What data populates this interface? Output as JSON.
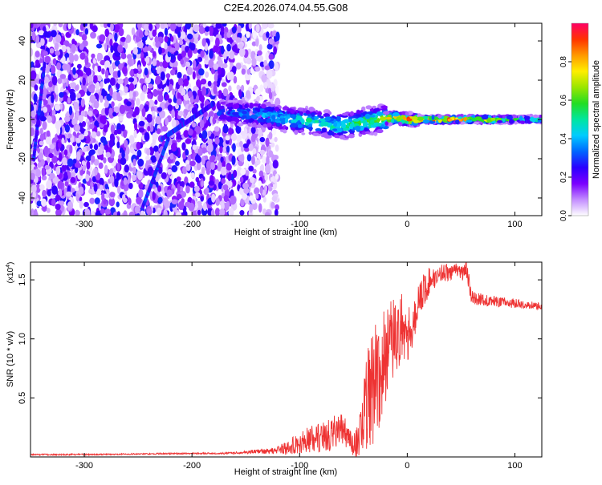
{
  "chart_data": [
    {
      "type": "heatmap",
      "title": "C2E4.2026.074.04.55.G08",
      "xlabel": "Height of straight line (km)",
      "ylabel": "Frequency (Hz)",
      "xlim": [
        -350,
        125
      ],
      "ylim": [
        -49,
        49
      ],
      "xticks": [
        -300,
        -200,
        -100,
        0,
        100
      ],
      "yticks": [
        40,
        20,
        0,
        -20,
        -40
      ],
      "colorbar": {
        "label": "Normalized spectral amplitude",
        "range": [
          0,
          1
        ],
        "ticks": [
          "0.0",
          "0.2",
          "0.4",
          "0.6",
          "0.8"
        ],
        "colors": [
          "#ffffff",
          "#c38cff",
          "#7a00ff",
          "#2a00ff",
          "#0066ff",
          "#00ccff",
          "#00e6a0",
          "#22dd22",
          "#99e600",
          "#ffee00",
          "#ff9900",
          "#ff3300",
          "#ff0066"
        ]
      },
      "signal_track": {
        "description_free": true,
        "centre_frequency": [
          [
            -170,
            4
          ],
          [
            -150,
            3
          ],
          [
            -130,
            2
          ],
          [
            -110,
            0
          ],
          [
            -90,
            -1
          ],
          [
            -70,
            -3
          ],
          [
            -55,
            -3
          ],
          [
            -40,
            -1
          ],
          [
            -25,
            0
          ],
          [
            -10,
            1
          ],
          [
            0,
            0
          ],
          [
            20,
            0
          ],
          [
            40,
            0
          ],
          [
            60,
            0
          ],
          [
            80,
            0
          ],
          [
            100,
            0
          ],
          [
            125,
            0
          ]
        ],
        "peak_amplitude": [
          [
            -170,
            0.3
          ],
          [
            -140,
            0.4
          ],
          [
            -110,
            0.45
          ],
          [
            -90,
            0.5
          ],
          [
            -70,
            0.5
          ],
          [
            -50,
            0.55
          ],
          [
            -30,
            0.6
          ],
          [
            -15,
            0.75
          ],
          [
            0,
            0.85
          ],
          [
            20,
            0.9
          ],
          [
            40,
            0.9
          ],
          [
            60,
            0.75
          ],
          [
            80,
            0.7
          ],
          [
            100,
            0.55
          ],
          [
            125,
            0.5
          ]
        ]
      }
    },
    {
      "type": "line",
      "xlabel": "Height of straight line (km)",
      "ylabel": "SNR (10 * v/v)",
      "y_multiplier": "(x10",
      "y_multiplier_exp": "4",
      "y_multiplier_close": ")",
      "xlim": [
        -350,
        125
      ],
      "ylim": [
        0,
        1.65
      ],
      "xticks": [
        -300,
        -200,
        -100,
        0,
        100
      ],
      "yticks": [
        "0.5",
        "1.0",
        "1.5"
      ],
      "color": "#ee3333",
      "series": [
        {
          "name": "SNR",
          "x": [
            -350,
            -300,
            -250,
            -200,
            -170,
            -150,
            -130,
            -120,
            -110,
            -100,
            -90,
            -80,
            -70,
            -60,
            -50,
            -45,
            -40,
            -35,
            -30,
            -25,
            -20,
            -15,
            -10,
            -5,
            0,
            5,
            10,
            15,
            20,
            25,
            30,
            35,
            40,
            45,
            50,
            55,
            60,
            70,
            80,
            90,
            100,
            110,
            120,
            125
          ],
          "y": [
            0.02,
            0.02,
            0.025,
            0.03,
            0.03,
            0.04,
            0.05,
            0.06,
            0.08,
            0.12,
            0.15,
            0.17,
            0.2,
            0.24,
            0.1,
            0.15,
            0.35,
            0.55,
            0.65,
            0.75,
            0.85,
            0.95,
            1.02,
            1.1,
            1.05,
            1.1,
            1.3,
            1.4,
            1.48,
            1.52,
            1.55,
            1.57,
            1.55,
            1.6,
            1.55,
            1.58,
            1.35,
            1.33,
            1.32,
            1.31,
            1.3,
            1.29,
            1.28,
            1.27
          ],
          "noise": [
            0.004,
            0.004,
            0.004,
            0.004,
            0.004,
            0.008,
            0.015,
            0.025,
            0.04,
            0.06,
            0.07,
            0.08,
            0.09,
            0.08,
            0.06,
            0.1,
            0.2,
            0.3,
            0.35,
            0.3,
            0.25,
            0.25,
            0.2,
            0.18,
            0.15,
            0.12,
            0.1,
            0.1,
            0.08,
            0.06,
            0.05,
            0.05,
            0.04,
            0.03,
            0.04,
            0.05,
            0.04,
            0.03,
            0.03,
            0.025,
            0.025,
            0.02,
            0.02,
            0.02
          ]
        }
      ]
    }
  ]
}
